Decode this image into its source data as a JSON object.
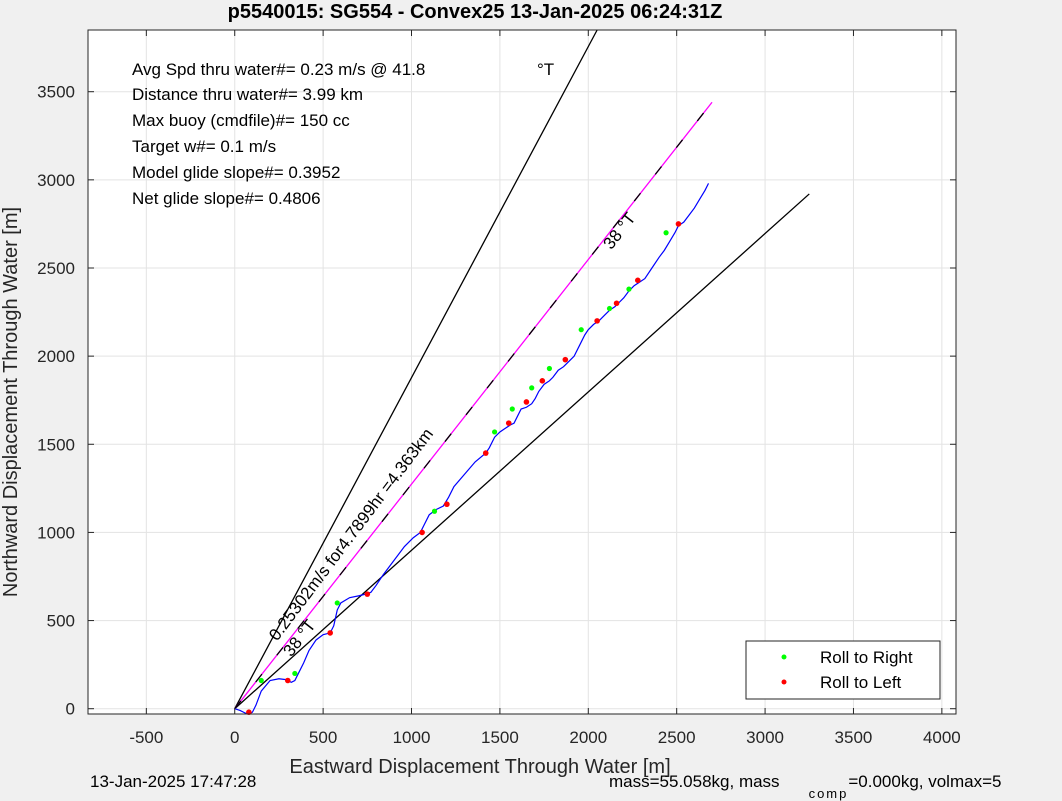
{
  "chart_data": {
    "type": "line",
    "title": "p5540015: SG554 - Convex25 13-Jan-2025 06:24:31Z",
    "xlabel": "Eastward Displacement Through Water [m]",
    "ylabel": "Northward Displacement Through Water [m]",
    "xlim": [
      -830,
      4080
    ],
    "ylim": [
      -30,
      3850
    ],
    "xticks": [
      -500,
      0,
      500,
      1000,
      1500,
      2000,
      2500,
      3000,
      3500,
      4000
    ],
    "yticks": [
      0,
      500,
      1000,
      1500,
      2000,
      2500,
      3000,
      3500
    ],
    "grid": true,
    "legend_position": "bottom-right",
    "legend": [
      {
        "label": "Roll to Right",
        "color": "#00ff00"
      },
      {
        "label": "Roll to Left",
        "color": "#ff0000"
      }
    ],
    "stats": [
      "Avg Spd thru water#=  0.23 m/s @  41.8",
      "Distance thru water#=  3.99 km",
      "Max buoy (cmdfile)#= 150 cc",
      "Target w#= 0.1 m/s",
      "Model glide slope#= 0.3952",
      "Net glide slope#= 0.4806"
    ],
    "stats_unit": "°T",
    "reference_lines": [
      {
        "name": "",
        "color": "#000000",
        "x": [
          0,
          2050
        ],
        "y": [
          0,
          3850
        ]
      },
      {
        "name": "",
        "color": "#000000",
        "x": [
          0,
          3250
        ],
        "y": [
          0,
          2920
        ]
      },
      {
        "name": "",
        "color": "#ff00ff",
        "dashed_with": "#000000",
        "x": [
          0,
          2700
        ],
        "y": [
          0,
          3440
        ]
      }
    ],
    "annotations": [
      {
        "text": "0.25302m/s for4.7899hr =4.363km",
        "x": 240,
        "y": 380,
        "angle_deg": -53
      },
      {
        "text": "38 °T",
        "x": 320,
        "y": 290,
        "angle_deg": -52
      },
      {
        "text": "38 °T",
        "x": 2130,
        "y": 2600,
        "angle_deg": -52
      }
    ],
    "series": [
      {
        "color": "#0000ff",
        "x": [
          0,
          30,
          60,
          80,
          100,
          120,
          150,
          200,
          250,
          290,
          320,
          340,
          360,
          390,
          420,
          460,
          500,
          540,
          560,
          580,
          600,
          650,
          700,
          740,
          770,
          800,
          840,
          900,
          960,
          1010,
          1050,
          1070,
          1100,
          1140,
          1180,
          1210,
          1240,
          1300,
          1360,
          1420,
          1440,
          1470,
          1500,
          1530,
          1560,
          1580,
          1600,
          1620,
          1650,
          1680,
          1700,
          1720,
          1750,
          1780,
          1800,
          1830,
          1860,
          1880,
          1900,
          1920,
          1950,
          1980,
          2000,
          2030,
          2060,
          2090,
          2120,
          2150,
          2170,
          2200,
          2230,
          2260,
          2290,
          2320,
          2360,
          2400,
          2430,
          2460,
          2490,
          2510,
          2540,
          2570,
          2600,
          2630,
          2660,
          2680
        ],
        "y": [
          0,
          -10,
          -25,
          -30,
          -20,
          20,
          100,
          160,
          170,
          165,
          150,
          160,
          200,
          260,
          330,
          390,
          420,
          430,
          470,
          560,
          600,
          630,
          640,
          650,
          660,
          700,
          760,
          840,
          920,
          970,
          1000,
          1040,
          1100,
          1130,
          1150,
          1200,
          1260,
          1330,
          1400,
          1450,
          1480,
          1540,
          1570,
          1590,
          1610,
          1620,
          1660,
          1700,
          1710,
          1730,
          1760,
          1800,
          1840,
          1860,
          1880,
          1920,
          1940,
          1960,
          1980,
          2000,
          2060,
          2120,
          2150,
          2180,
          2200,
          2230,
          2260,
          2280,
          2300,
          2330,
          2370,
          2400,
          2420,
          2440,
          2500,
          2560,
          2600,
          2650,
          2700,
          2740,
          2760,
          2800,
          2840,
          2890,
          2940,
          2980
        ]
      }
    ],
    "roll_right_points": {
      "x": [
        150,
        340,
        580,
        1130,
        1470,
        1570,
        1680,
        1780,
        1960,
        2120,
        2230,
        2440
      ],
      "y": [
        160,
        200,
        600,
        1120,
        1570,
        1700,
        1820,
        1930,
        2150,
        2270,
        2380,
        2700
      ]
    },
    "roll_left_points": {
      "x": [
        80,
        300,
        540,
        750,
        1060,
        1200,
        1420,
        1550,
        1650,
        1740,
        1870,
        2050,
        2160,
        2280,
        2510
      ],
      "y": [
        -20,
        160,
        430,
        650,
        1000,
        1160,
        1450,
        1620,
        1740,
        1860,
        1980,
        2200,
        2300,
        2430,
        2750
      ]
    }
  },
  "footer": {
    "left": "13-Jan-2025 17:47:28",
    "right_prefix": "mass=55.058kg, mass",
    "right_sub": "comp",
    "right_suffix": "=0.000kg, volmax=5"
  }
}
